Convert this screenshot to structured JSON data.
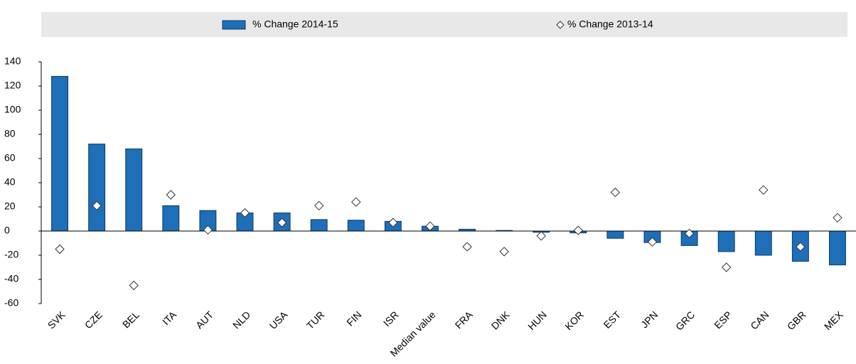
{
  "chart_data": {
    "type": "bar",
    "categories": [
      "SVK",
      "CZE",
      "BEL",
      "ITA",
      "AUT",
      "NLD",
      "USA",
      "TUR",
      "FIN",
      "ISR",
      "Median value",
      "FRA",
      "DNK",
      "HUN",
      "KOR",
      "EST",
      "JPN",
      "GRC",
      "ESP",
      "CAN",
      "GBR",
      "MEX"
    ],
    "series": [
      {
        "name": "% Change 2014-15",
        "color": "#1f6eb8",
        "marker": "bar",
        "values": [
          128,
          72,
          68,
          21,
          17,
          15,
          15,
          9.5,
          9,
          8,
          4,
          1.5,
          0.5,
          -1,
          -1.5,
          -6,
          -9.5,
          -12,
          -17,
          -20,
          -25,
          -28
        ]
      },
      {
        "name": "% Change 2013-14",
        "color": "#ffffff",
        "marker": "diamond",
        "values": [
          -15,
          21,
          -45,
          30,
          1,
          15,
          7,
          21,
          24,
          7,
          4,
          -13,
          -17,
          -4,
          0.5,
          32,
          -9,
          -2,
          -30,
          34,
          -13,
          11
        ]
      }
    ],
    "ylim": [
      -60,
      140
    ],
    "yticks": [
      -60,
      -40,
      -20,
      0,
      20,
      40,
      60,
      80,
      100,
      120,
      140
    ],
    "grid": false
  }
}
